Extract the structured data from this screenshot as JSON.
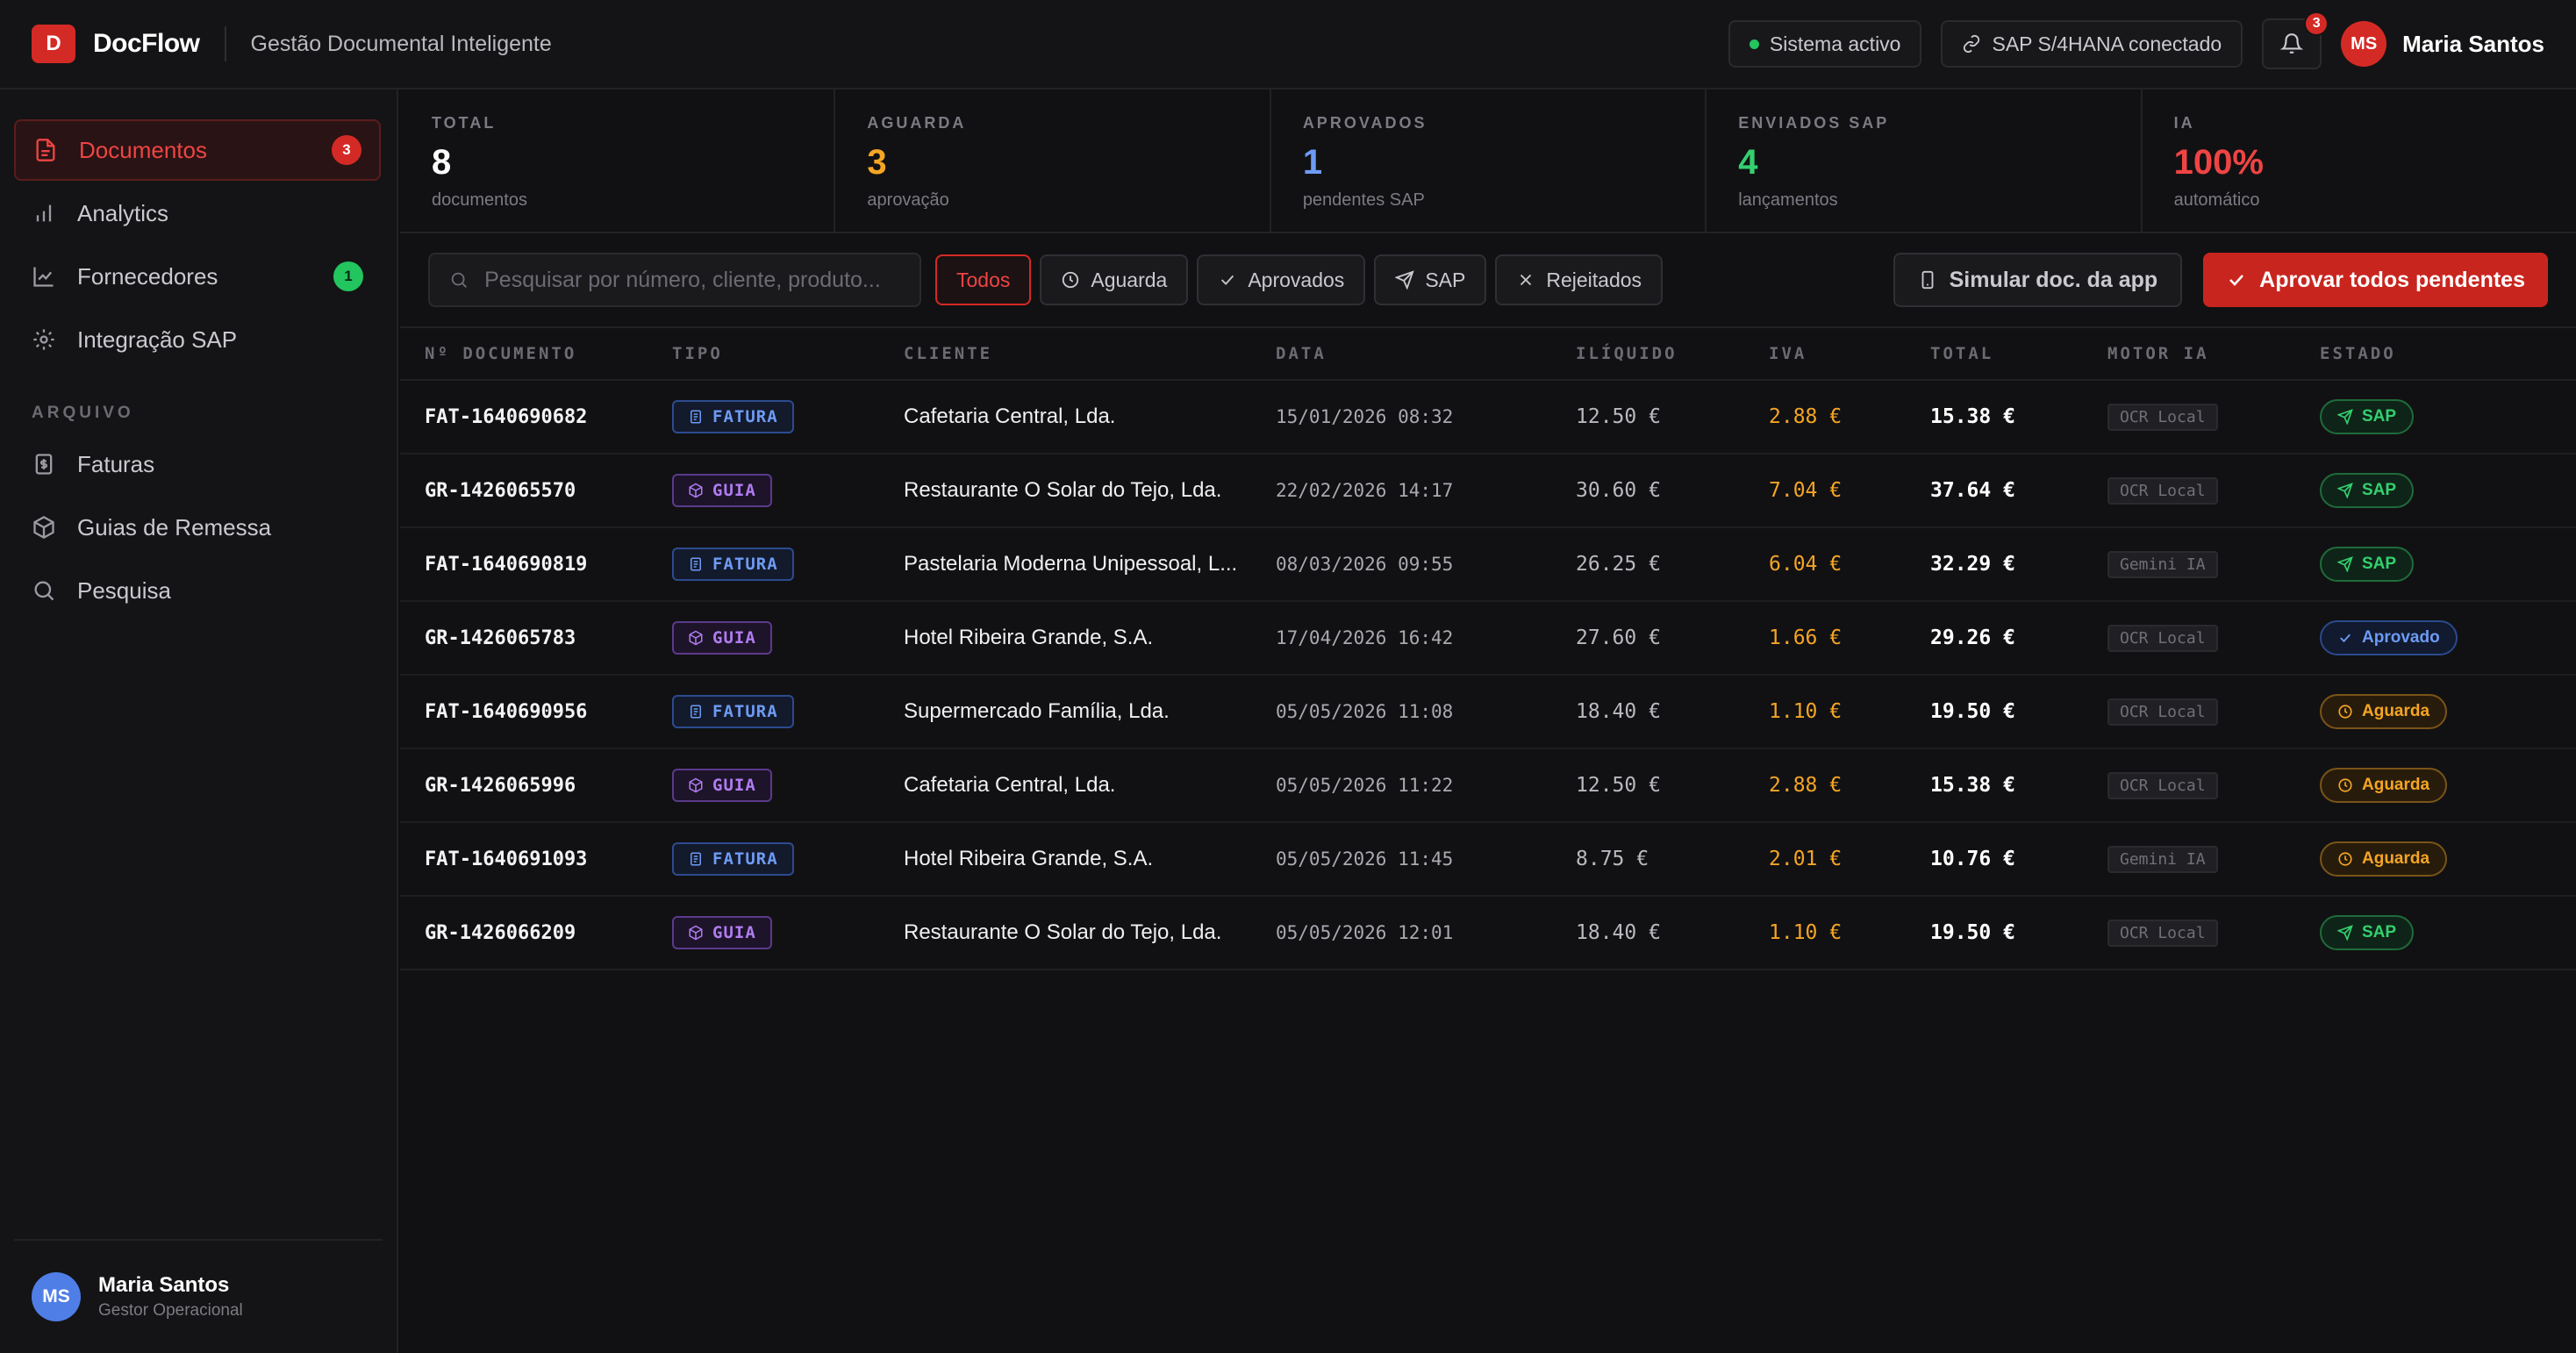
{
  "header": {
    "logo_letter": "D",
    "brand": "DocFlow",
    "subtitle": "Gestão Documental Inteligente",
    "system_status": "Sistema activo",
    "sap_status": "SAP S/4HANA conectado",
    "notifications_count": "3",
    "user_initials": "MS",
    "user_name": "Maria Santos"
  },
  "sidebar": {
    "items": [
      {
        "label": "Documentos",
        "badge": "3",
        "icon": "file-icon"
      },
      {
        "label": "Analytics",
        "icon": "bar-chart-icon"
      },
      {
        "label": "Fornecedores",
        "badge": "1",
        "icon": "line-chart-icon"
      },
      {
        "label": "Integração SAP",
        "icon": "gear-icon"
      }
    ],
    "section_label": "ARQUIVO",
    "archive_items": [
      {
        "label": "Faturas",
        "icon": "receipt-icon"
      },
      {
        "label": "Guias de Remessa",
        "icon": "package-icon"
      },
      {
        "label": "Pesquisa",
        "icon": "search-icon"
      }
    ],
    "footer": {
      "initials": "MS",
      "name": "Maria Santos",
      "role": "Gestor Operacional"
    }
  },
  "stats": [
    {
      "label": "TOTAL",
      "value": "8",
      "sub": "documentos",
      "color": "#ffffff"
    },
    {
      "label": "AGUARDA",
      "value": "3",
      "sub": "aprovação",
      "color": "#f5a524"
    },
    {
      "label": "APROVADOS",
      "value": "1",
      "sub": "pendentes SAP",
      "color": "#6d9bf5"
    },
    {
      "label": "ENVIADOS SAP",
      "value": "4",
      "sub": "lançamentos",
      "color": "#34d06f"
    },
    {
      "label": "IA",
      "value": "100%",
      "sub": "automático",
      "color": "#ef4444"
    }
  ],
  "toolbar": {
    "search_placeholder": "Pesquisar por número, cliente, produto...",
    "filters": [
      "Todos",
      "Aguarda",
      "Aprovados",
      "SAP",
      "Rejeitados"
    ],
    "simulate_label": "Simular doc. da app",
    "approve_all_label": "Aprovar todos pendentes"
  },
  "table": {
    "headers": [
      "Nº DOCUMENTO",
      "TIPO",
      "CLIENTE",
      "DATA",
      "ILÍQUIDO",
      "IVA",
      "TOTAL",
      "MOTOR IA",
      "ESTADO"
    ],
    "rows": [
      {
        "doc": "FAT-1640690682",
        "type": "FATURA",
        "client": "Cafetaria Central, Lda.",
        "date": "15/01/2026 08:32",
        "net": "12.50 €",
        "vat": "2.88 €",
        "total": "15.38 €",
        "engine": "OCR Local",
        "status": "SAP"
      },
      {
        "doc": "GR-1426065570",
        "type": "GUIA",
        "client": "Restaurante O Solar do Tejo, Lda.",
        "date": "22/02/2026 14:17",
        "net": "30.60 €",
        "vat": "7.04 €",
        "total": "37.64 €",
        "engine": "OCR Local",
        "status": "SAP"
      },
      {
        "doc": "FAT-1640690819",
        "type": "FATURA",
        "client": "Pastelaria Moderna Unipessoal, L...",
        "date": "08/03/2026 09:55",
        "net": "26.25 €",
        "vat": "6.04 €",
        "total": "32.29 €",
        "engine": "Gemini IA",
        "status": "SAP"
      },
      {
        "doc": "GR-1426065783",
        "type": "GUIA",
        "client": "Hotel Ribeira Grande, S.A.",
        "date": "17/04/2026 16:42",
        "net": "27.60 €",
        "vat": "1.66 €",
        "total": "29.26 €",
        "engine": "OCR Local",
        "status": "Aprovado"
      },
      {
        "doc": "FAT-1640690956",
        "type": "FATURA",
        "client": "Supermercado Família, Lda.",
        "date": "05/05/2026 11:08",
        "net": "18.40 €",
        "vat": "1.10 €",
        "total": "19.50 €",
        "engine": "OCR Local",
        "status": "Aguarda"
      },
      {
        "doc": "GR-1426065996",
        "type": "GUIA",
        "client": "Cafetaria Central, Lda.",
        "date": "05/05/2026 11:22",
        "net": "12.50 €",
        "vat": "2.88 €",
        "total": "15.38 €",
        "engine": "OCR Local",
        "status": "Aguarda"
      },
      {
        "doc": "FAT-1640691093",
        "type": "FATURA",
        "client": "Hotel Ribeira Grande, S.A.",
        "date": "05/05/2026 11:45",
        "net": "8.75 €",
        "vat": "2.01 €",
        "total": "10.76 €",
        "engine": "Gemini IA",
        "status": "Aguarda"
      },
      {
        "doc": "GR-1426066209",
        "type": "GUIA",
        "client": "Restaurante O Solar do Tejo, Lda.",
        "date": "05/05/2026 12:01",
        "net": "18.40 €",
        "vat": "1.10 €",
        "total": "19.50 €",
        "engine": "OCR Local",
        "status": "SAP"
      }
    ]
  }
}
